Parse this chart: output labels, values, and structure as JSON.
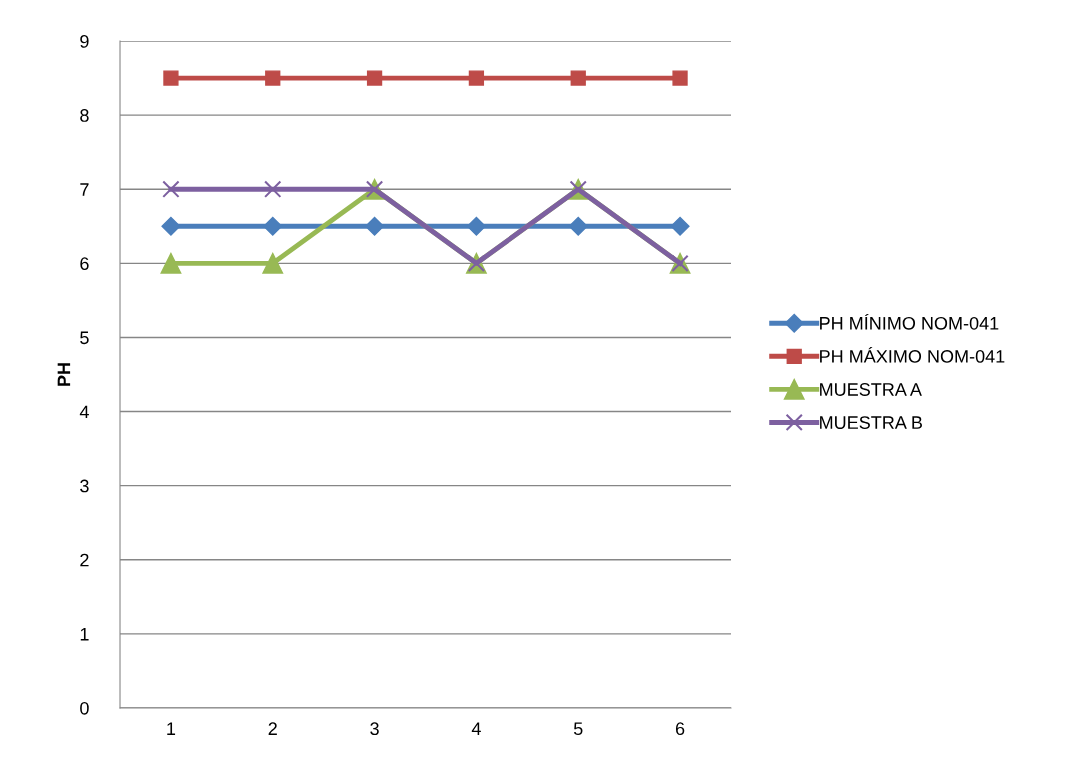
{
  "chart_data": {
    "type": "line",
    "ylabel": "PH",
    "categories": [
      "1",
      "2",
      "3",
      "4",
      "5",
      "6"
    ],
    "series": [
      {
        "name": "PH MÍNIMO NOM-041",
        "color": "#4a7ebb",
        "marker": "diamond",
        "values": [
          6.5,
          6.5,
          6.5,
          6.5,
          6.5,
          6.5
        ]
      },
      {
        "name": "PH MÁXIMO NOM-041",
        "color": "#be4b48",
        "marker": "square",
        "values": [
          8.5,
          8.5,
          8.5,
          8.5,
          8.5,
          8.5
        ]
      },
      {
        "name": "MUESTRA A",
        "color": "#98b954",
        "marker": "triangle",
        "values": [
          6,
          6,
          7,
          6,
          7,
          6
        ]
      },
      {
        "name": "MUESTRA B",
        "color": "#7d60a0",
        "marker": "cross",
        "values": [
          7,
          7,
          7,
          6,
          7,
          6
        ]
      }
    ],
    "ylim": [
      0,
      9
    ],
    "yticks": [
      0,
      1,
      2,
      3,
      4,
      5,
      6,
      7,
      8,
      9
    ],
    "grid": "y",
    "legend": "right",
    "line_style": "solid"
  }
}
